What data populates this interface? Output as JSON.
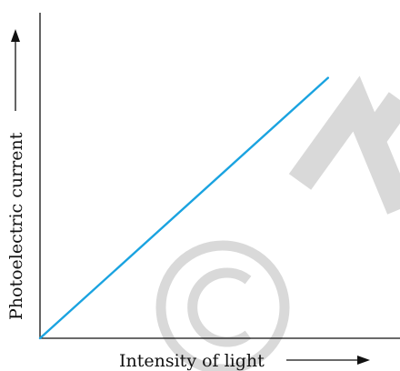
{
  "chart_data": {
    "type": "line",
    "title": "",
    "xlabel": "Intensity of light",
    "ylabel": "Photoelectric current",
    "xlim": [
      0,
      1
    ],
    "ylim": [
      0,
      1
    ],
    "grid": false,
    "axis_ticks": false,
    "series": [
      {
        "x": [
          0,
          0.8
        ],
        "y": [
          0,
          0.8
        ]
      }
    ],
    "colors": {
      "line": "#1aa3e0",
      "axes": "#111111",
      "watermark": "#d9d9d9"
    }
  },
  "watermark": {
    "text": "NCERT",
    "symbol": "©"
  }
}
